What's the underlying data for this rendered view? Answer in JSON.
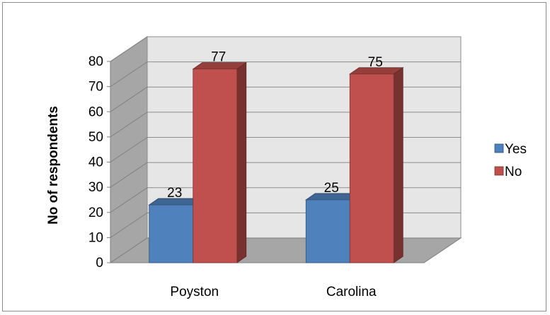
{
  "chart_data": {
    "type": "bar",
    "categories": [
      "Poyston",
      "Carolina"
    ],
    "series": [
      {
        "name": "Yes",
        "values": [
          23,
          25
        ],
        "color": "#4f81bd"
      },
      {
        "name": "No",
        "values": [
          77,
          75
        ],
        "color": "#c0504d"
      }
    ],
    "ylabel": "No of respondents",
    "xlabel": "",
    "ylim": [
      0,
      80
    ],
    "yticks": [
      0,
      10,
      20,
      30,
      40,
      50,
      60,
      70,
      80
    ],
    "grid": true,
    "legend_position": "right",
    "style": "3d-column"
  }
}
